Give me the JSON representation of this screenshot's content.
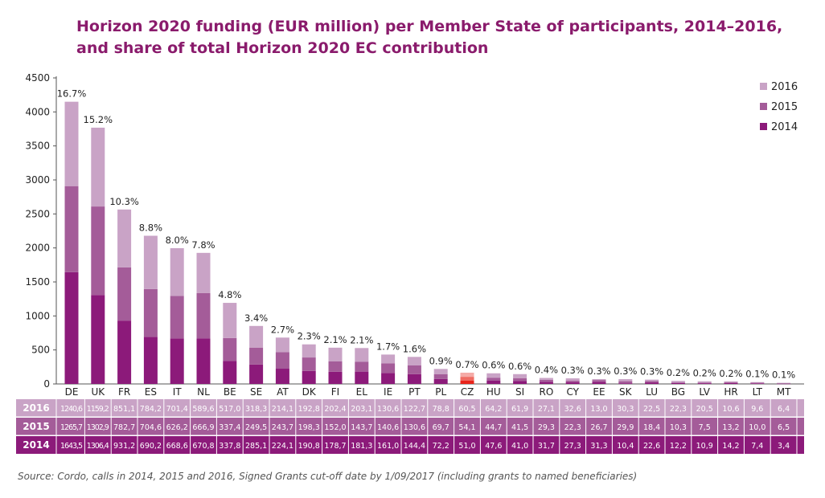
{
  "chart_data": {
    "type": "bar",
    "stacked": true,
    "title": "Horizon 2020 funding (EUR million) per Member State of participants, 2014-2016, and share of total Horizon 2020 EC contribution",
    "categories": [
      "DE",
      "UK",
      "FR",
      "ES",
      "IT",
      "NL",
      "BE",
      "SE",
      "AT",
      "DK",
      "FI",
      "EL",
      "IE",
      "PT",
      "PL",
      "CZ",
      "HU",
      "SI",
      "RO",
      "CY",
      "EE",
      "SK",
      "LU",
      "BG",
      "LV",
      "HR",
      "LT",
      "MT"
    ],
    "series": [
      {
        "name": "2014",
        "color": "#8c1a7a",
        "values": [
          1643.5,
          1306.4,
          931.2,
          690.2,
          668.6,
          670.8,
          337.8,
          285.1,
          224.1,
          190.8,
          178.7,
          181.3,
          161.0,
          144.4,
          72.2,
          51.0,
          47.6,
          41.0,
          31.7,
          27.3,
          31.3,
          10.4,
          22.6,
          12.2,
          10.9,
          14.2,
          7.4,
          3.4
        ],
        "labels": [
          "1643,5",
          "1306,4",
          "931,2",
          "690,2",
          "668,6",
          "670,8",
          "337,8",
          "285,1",
          "224,1",
          "190,8",
          "178,7",
          "181,3",
          "161,0",
          "144,4",
          "72,2",
          "51,0",
          "47,6",
          "41,0",
          "31,7",
          "27,3",
          "31,3",
          "10,4",
          "22,6",
          "12,2",
          "10,9",
          "14,2",
          "7,4",
          "3,4"
        ]
      },
      {
        "name": "2015",
        "color": "#a45c99",
        "values": [
          1265.7,
          1302.9,
          782.7,
          704.6,
          626.2,
          666.9,
          337.4,
          249.5,
          243.7,
          198.3,
          152.0,
          143.7,
          140.6,
          130.6,
          69.7,
          54.1,
          44.7,
          41.5,
          29.3,
          22.3,
          26.7,
          29.9,
          18.4,
          10.3,
          7.5,
          13.2,
          10.0,
          6.5
        ],
        "labels": [
          "1265,7",
          "1302,9",
          "782,7",
          "704,6",
          "626,2",
          "666,9",
          "337,4",
          "249,5",
          "243,7",
          "198,3",
          "152,0",
          "143,7",
          "140,6",
          "130,6",
          "69,7",
          "54,1",
          "44,7",
          "41,5",
          "29,3",
          "22,3",
          "26,7",
          "29,9",
          "18,4",
          "10,3",
          "7,5",
          "13,2",
          "10,0",
          "6,5"
        ]
      },
      {
        "name": "2016",
        "color": "#c9a3c6",
        "values": [
          1240.6,
          1159.2,
          851.1,
          784.2,
          701.4,
          589.6,
          517.0,
          318.3,
          214.1,
          192.8,
          202.4,
          203.1,
          130.6,
          122.7,
          78.8,
          60.5,
          64.2,
          61.9,
          27.1,
          32.6,
          13.0,
          30.3,
          22.5,
          22.3,
          20.5,
          10.6,
          9.6,
          6.4
        ],
        "labels": [
          "1240,6",
          "1159,2",
          "851,1",
          "784,2",
          "701,4",
          "589,6",
          "517,0",
          "318,3",
          "214,1",
          "192,8",
          "202,4",
          "203,1",
          "130,6",
          "122,7",
          "78,8",
          "60,5",
          "64,2",
          "61,9",
          "27,1",
          "32,6",
          "13,0",
          "30,3",
          "22,5",
          "22,3",
          "20,5",
          "10,6",
          "9,6",
          "6,4"
        ]
      }
    ],
    "highlight": {
      "category": "CZ",
      "colors": [
        "#e8231a",
        "#ef6b62",
        "#f5aaa6"
      ]
    },
    "share_labels": [
      "16.7%",
      "15.2%",
      "10.3%",
      "8.8%",
      "8.0%",
      "7.8%",
      "4.8%",
      "3.4%",
      "2.7%",
      "2.3%",
      "2.1%",
      "2.1%",
      "1.7%",
      "1.6%",
      "0.9%",
      "0.7%",
      "0.6%",
      "0.6%",
      "0.4%",
      "0.3%",
      "0.3%",
      "0.3%",
      "0.3%",
      "0.2%",
      "0.2%",
      "0.2%",
      "0.1%",
      "0.1%"
    ],
    "ylim": [
      0,
      4500
    ],
    "yticks": [
      0,
      500,
      1000,
      1500,
      2000,
      2500,
      3000,
      3500,
      4000,
      4500
    ],
    "legend": {
      "position": "top-right",
      "order": [
        "2016",
        "2015",
        "2014"
      ]
    },
    "table_row_order": [
      "2016",
      "2015",
      "2014"
    ],
    "table_row_colors": [
      "#c9a3c6",
      "#a45c99",
      "#8c1a7a"
    ],
    "grid": false
  },
  "title_text": "Horizon 2020 funding (EUR million) per Member State of participants, 2014–2016, and share of total Horizon 2020 EC contribution",
  "source": "Source: Cordo, calls in 2014, 2015 and 2016, Signed Grants cut-off date by 1/09/2017 (including grants to named beneficiaries)"
}
